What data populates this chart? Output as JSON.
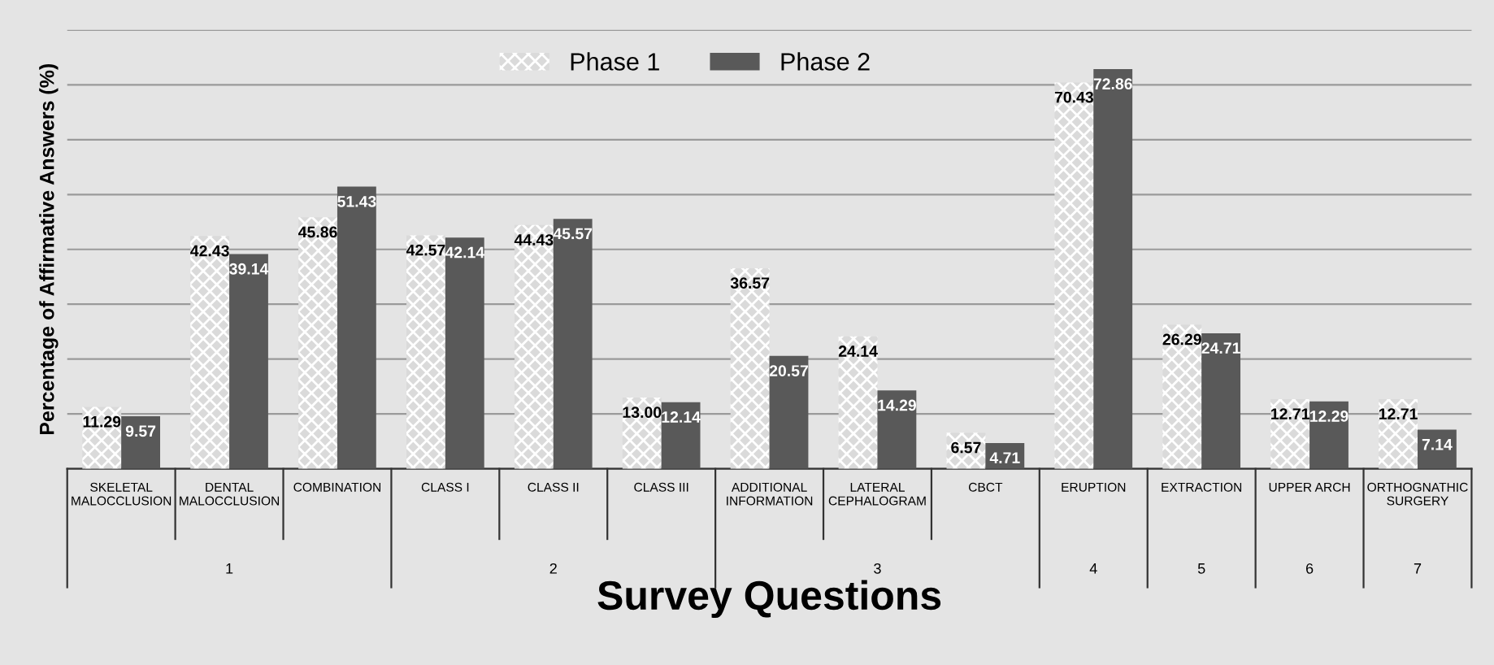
{
  "chart_data": {
    "type": "bar",
    "xlabel": "Survey Questions",
    "ylabel": "Percentage of Affirmative Answers (%)",
    "categories": [
      "SKELETAL\nMALOCCLUSION",
      "DENTAL\nMALOCCLUSION",
      "COMBINATION",
      "CLASS I",
      "CLASS II",
      "CLASS III",
      "ADDITIONAL\nINFORMATION",
      "LATERAL\nCEPHALOGRAM",
      "CBCT",
      "ERUPTION",
      "EXTRACTION",
      "UPPER ARCH",
      "ORTHOGNATHIC\nSURGERY"
    ],
    "series": [
      {
        "name": "Phase 1",
        "color": "#dadada",
        "values": [
          11.29,
          42.43,
          45.86,
          42.57,
          44.43,
          13.0,
          36.57,
          24.14,
          6.57,
          70.43,
          26.29,
          12.71,
          12.71
        ],
        "value_labels": [
          "11.29",
          "42.43",
          "45.86",
          "42.57",
          "44.43",
          "13.00",
          "36.57",
          "24.14",
          "6.57",
          "70.43",
          "26.29",
          "12.71",
          "12.71"
        ]
      },
      {
        "name": "Phase 2",
        "color": "#595959",
        "values": [
          9.57,
          39.14,
          51.43,
          42.14,
          45.57,
          12.14,
          20.57,
          14.29,
          4.71,
          72.86,
          24.71,
          12.29,
          7.14
        ],
        "value_labels": [
          "9.57",
          "39.14",
          "51.43",
          "42.14",
          "45.57",
          "12.14",
          "20.57",
          "14.29",
          "4.71",
          "72.86",
          "24.71",
          "12.29",
          "7.14"
        ]
      }
    ],
    "annotations": [
      "1",
      "2",
      "3",
      "4",
      "5",
      "6",
      "7"
    ],
    "ylim": [
      0,
      80
    ],
    "yticks": [
      {
        "value": 0,
        "label": null
      },
      {
        "value": 10,
        "label": null
      },
      {
        "value": 20,
        "label": null
      },
      {
        "value": 30,
        "label": null
      },
      {
        "value": 40,
        "label": null
      },
      {
        "value": 50,
        "label": null
      },
      {
        "value": 60,
        "label": null
      },
      {
        "value": 70,
        "label": null
      },
      {
        "value": 80,
        "label": null
      }
    ],
    "grid": "y",
    "legend": "top",
    "tick_labels": "x"
  }
}
